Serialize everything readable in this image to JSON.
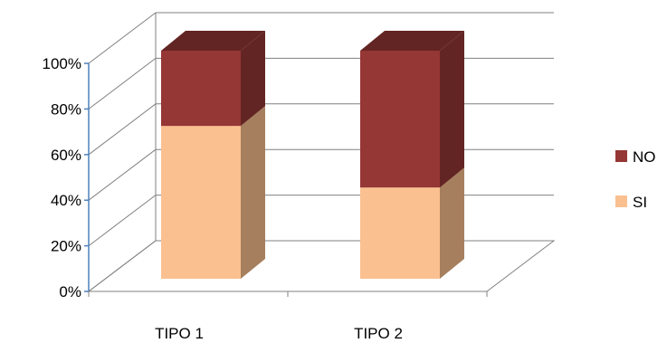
{
  "chart_data": {
    "type": "bar",
    "stacked": true,
    "percent_stacked": true,
    "three_d": true,
    "categories": [
      "TIPO 1",
      "TIPO 2"
    ],
    "series": [
      {
        "name": "SI",
        "values": [
          67,
          40
        ],
        "color": "#FAC090",
        "side_color": "#A67F5E"
      },
      {
        "name": "NO",
        "values": [
          33,
          60
        ],
        "color": "#953735",
        "side_color": "#632523"
      }
    ],
    "y_ticks": [
      "0%",
      "20%",
      "40%",
      "60%",
      "80%",
      "100%"
    ],
    "ylim": [
      0,
      100
    ],
    "grid": true,
    "legend_position": "right",
    "legend_order": [
      "NO",
      "SI"
    ],
    "axis_color": "#4F81BD",
    "grid_color": "#808080"
  }
}
